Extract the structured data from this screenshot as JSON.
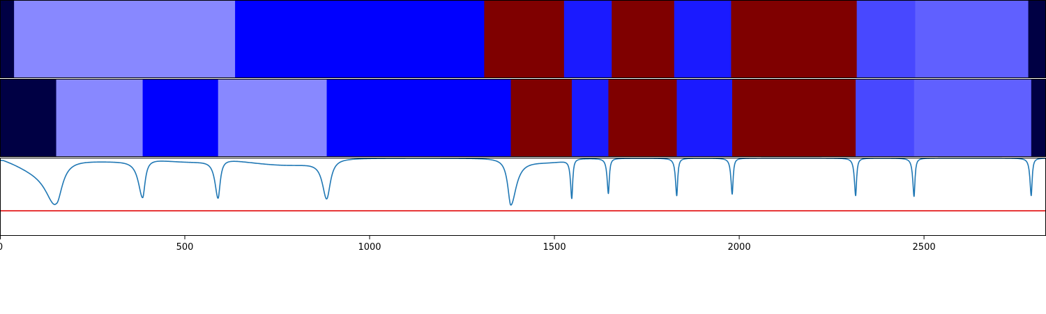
{
  "chart_data": {
    "type": "heatmap",
    "x_range": [
      0,
      2830
    ],
    "x_ticks": [
      0,
      500,
      1000,
      1500,
      2000,
      2500
    ],
    "x_tick_labels": [
      "0",
      "500",
      "1000",
      "1500",
      "2000",
      "2500"
    ],
    "segment_tracks": [
      {
        "segments": [
          {
            "start": 0,
            "end": 38,
            "color": "#000044"
          },
          {
            "start": 38,
            "end": 636,
            "color": "#8888ff"
          },
          {
            "start": 636,
            "end": 1310,
            "color": "#0000ff"
          },
          {
            "start": 1310,
            "end": 1526,
            "color": "#7f0000"
          },
          {
            "start": 1526,
            "end": 1655,
            "color": "#1a1aff"
          },
          {
            "start": 1655,
            "end": 1824,
            "color": "#7f0000"
          },
          {
            "start": 1824,
            "end": 1978,
            "color": "#1a1aff"
          },
          {
            "start": 1978,
            "end": 2318,
            "color": "#7f0000"
          },
          {
            "start": 2318,
            "end": 2476,
            "color": "#4848ff"
          },
          {
            "start": 2476,
            "end": 2782,
            "color": "#6060ff"
          },
          {
            "start": 2782,
            "end": 2830,
            "color": "#000044"
          }
        ]
      },
      {
        "segments": [
          {
            "start": 0,
            "end": 152,
            "color": "#000044"
          },
          {
            "start": 152,
            "end": 386,
            "color": "#8888ff"
          },
          {
            "start": 386,
            "end": 590,
            "color": "#0000ff"
          },
          {
            "start": 590,
            "end": 884,
            "color": "#8888ff"
          },
          {
            "start": 884,
            "end": 1382,
            "color": "#0000ff"
          },
          {
            "start": 1382,
            "end": 1547,
            "color": "#7f0000"
          },
          {
            "start": 1547,
            "end": 1646,
            "color": "#1a1aff"
          },
          {
            "start": 1646,
            "end": 1831,
            "color": "#7f0000"
          },
          {
            "start": 1831,
            "end": 1981,
            "color": "#1a1aff"
          },
          {
            "start": 1981,
            "end": 2315,
            "color": "#7f0000"
          },
          {
            "start": 2315,
            "end": 2473,
            "color": "#4848ff"
          },
          {
            "start": 2473,
            "end": 2790,
            "color": "#6060ff"
          },
          {
            "start": 2790,
            "end": 2830,
            "color": "#000044"
          }
        ]
      }
    ],
    "line_panel": {
      "y_range": [
        0,
        1
      ],
      "threshold": 0.32,
      "threshold_color": "#e31a1c",
      "line_color": "#1f77b4",
      "baseline": 0.995,
      "dips": [
        {
          "center": 152,
          "depth": 0.58,
          "left_width": 34,
          "right_width": 20
        },
        {
          "center": 386,
          "depth": 0.5,
          "left_width": 14,
          "right_width": 8
        },
        {
          "center": 590,
          "depth": 0.51,
          "left_width": 10,
          "right_width": 7
        },
        {
          "center": 884,
          "depth": 0.52,
          "left_width": 14,
          "right_width": 12
        },
        {
          "center": 1382,
          "depth": 0.6,
          "left_width": 10,
          "right_width": 18
        },
        {
          "center": 1547,
          "depth": 0.51,
          "left_width": 4,
          "right_width": 3
        },
        {
          "center": 1646,
          "depth": 0.45,
          "left_width": 4,
          "right_width": 3
        },
        {
          "center": 1831,
          "depth": 0.48,
          "left_width": 4,
          "right_width": 3
        },
        {
          "center": 1981,
          "depth": 0.46,
          "left_width": 4,
          "right_width": 3
        },
        {
          "center": 2315,
          "depth": 0.48,
          "left_width": 4,
          "right_width": 3
        },
        {
          "center": 2473,
          "depth": 0.49,
          "left_width": 4,
          "right_width": 3
        },
        {
          "center": 2790,
          "depth": 0.48,
          "left_width": 4,
          "right_width": 3
        }
      ],
      "broad_dips": [
        {
          "start": 10,
          "end": 152,
          "depth": 0.14
        },
        {
          "start": 152,
          "end": 386,
          "depth": 0.04
        },
        {
          "start": 386,
          "end": 590,
          "depth": 0.06
        },
        {
          "start": 590,
          "end": 884,
          "depth": 0.12
        },
        {
          "start": 1382,
          "end": 1547,
          "depth": 0.06
        }
      ]
    },
    "title": "",
    "xlabel": "",
    "ylabel": ""
  }
}
